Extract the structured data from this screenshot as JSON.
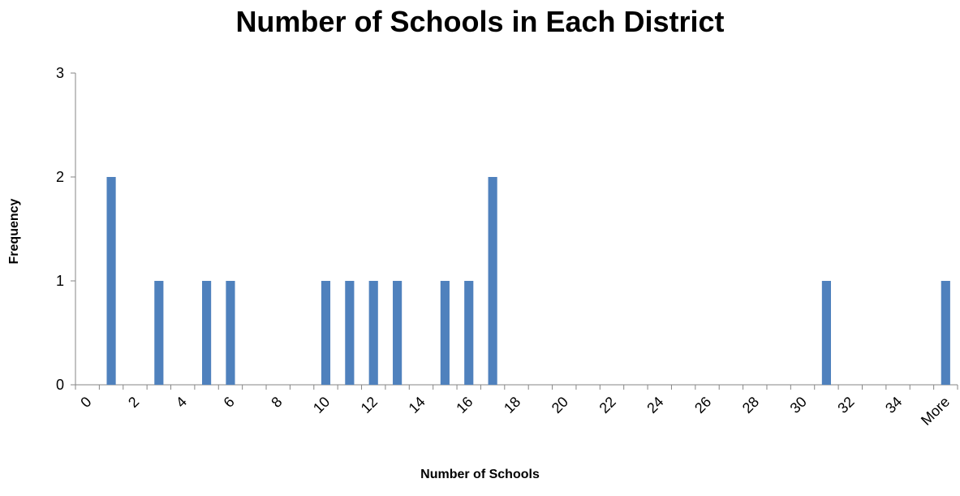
{
  "chart_data": {
    "type": "bar",
    "title": "Number of Schools in Each District",
    "xlabel": "Number of Schools",
    "ylabel": "Frequency",
    "ylim": [
      0,
      3
    ],
    "yticks": [
      0,
      1,
      2,
      3
    ],
    "grid": false,
    "legend": "none",
    "bar_color": "#4F81BD",
    "categories": [
      "0",
      "1",
      "2",
      "3",
      "4",
      "5",
      "6",
      "7",
      "8",
      "9",
      "10",
      "11",
      "12",
      "13",
      "14",
      "15",
      "16",
      "17",
      "18",
      "19",
      "20",
      "21",
      "22",
      "23",
      "24",
      "25",
      "26",
      "27",
      "28",
      "29",
      "30",
      "31",
      "32",
      "33",
      "34",
      "35",
      "More"
    ],
    "tick_labels": [
      "0",
      "2",
      "4",
      "6",
      "8",
      "10",
      "12",
      "14",
      "16",
      "18",
      "20",
      "22",
      "24",
      "26",
      "28",
      "30",
      "32",
      "34",
      "More"
    ],
    "values": [
      0,
      2,
      0,
      1,
      0,
      1,
      1,
      0,
      0,
      0,
      1,
      1,
      1,
      1,
      0,
      1,
      1,
      2,
      0,
      0,
      0,
      0,
      0,
      0,
      0,
      0,
      0,
      0,
      0,
      0,
      0,
      1,
      0,
      0,
      0,
      0,
      1
    ]
  }
}
